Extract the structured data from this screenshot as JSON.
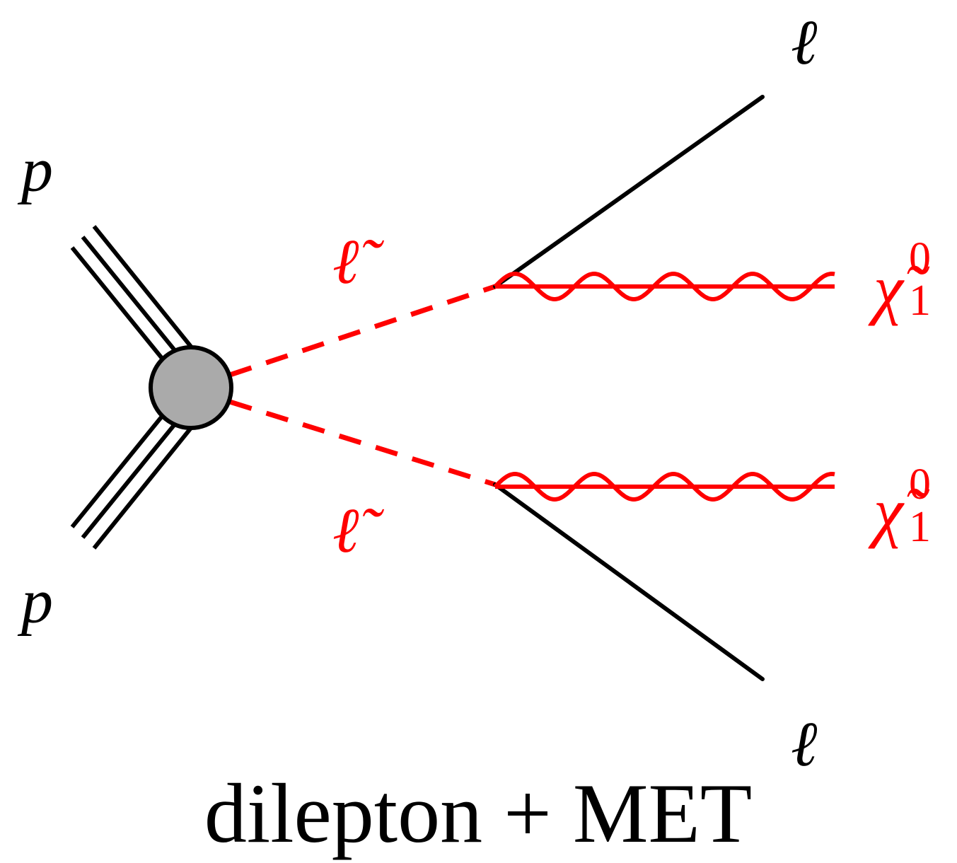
{
  "incoming": [
    "p",
    "p"
  ],
  "sleptons": [
    "ℓ̃",
    "ℓ̃"
  ],
  "leptons": [
    "ℓ",
    "ℓ"
  ],
  "neutralinos": [
    {
      "symbol": "χ̃",
      "superscript": "0",
      "subscript": "1"
    },
    {
      "symbol": "χ̃",
      "superscript": "0",
      "subscript": "1"
    }
  ],
  "caption": "dilepton + MET"
}
